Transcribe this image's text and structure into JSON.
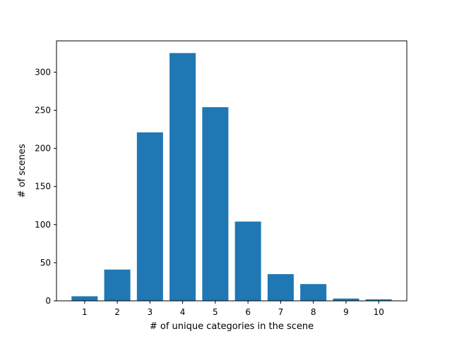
{
  "chart_data": {
    "type": "bar",
    "title": "",
    "xlabel": "# of unique categories in the scene",
    "ylabel": "# of scenes",
    "categories": [
      "1",
      "2",
      "3",
      "4",
      "5",
      "6",
      "7",
      "8",
      "9",
      "10"
    ],
    "values": [
      6,
      41,
      221,
      325,
      254,
      104,
      35,
      22,
      3,
      2
    ],
    "ylim": [
      0,
      341
    ],
    "yticks": [
      0,
      50,
      100,
      150,
      200,
      250,
      300
    ],
    "grid": false,
    "legend": "none",
    "bar_color": "#1f77b4"
  }
}
